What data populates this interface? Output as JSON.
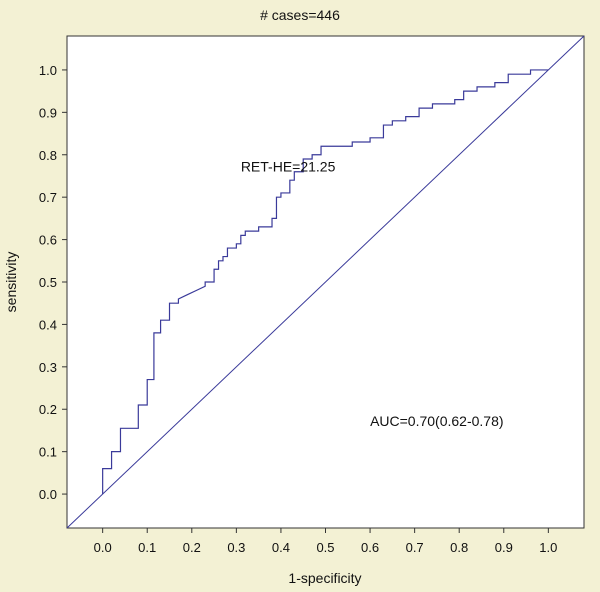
{
  "chart_data": {
    "type": "line",
    "title": "# cases=446",
    "xlabel": "1-specificity",
    "ylabel": "sensitivity",
    "xlim": [
      -0.08,
      1.08
    ],
    "ylim": [
      -0.08,
      1.08
    ],
    "xticks": [
      "0.0",
      "0.1",
      "0.2",
      "0.3",
      "0.4",
      "0.5",
      "0.6",
      "0.7",
      "0.8",
      "0.9",
      "1.0"
    ],
    "yticks": [
      "0.0",
      "0.1",
      "0.2",
      "0.3",
      "0.4",
      "0.5",
      "0.6",
      "0.7",
      "0.8",
      "0.9",
      "1.0"
    ],
    "grid": false,
    "line_color": "#3a3a9a",
    "series": [
      {
        "x": [
          0.0,
          0.0,
          0.02,
          0.02,
          0.04,
          0.04,
          0.08,
          0.08,
          0.1,
          0.1,
          0.115,
          0.115,
          0.13,
          0.13,
          0.15,
          0.15,
          0.17,
          0.17,
          0.19,
          0.21,
          0.23,
          0.23,
          0.25,
          0.25,
          0.26,
          0.26,
          0.27,
          0.27,
          0.28,
          0.28,
          0.3,
          0.3,
          0.31,
          0.31,
          0.32,
          0.32,
          0.35,
          0.35,
          0.38,
          0.38,
          0.39,
          0.39,
          0.4,
          0.4,
          0.42,
          0.42,
          0.43,
          0.43,
          0.45,
          0.45,
          0.47,
          0.47,
          0.49,
          0.49,
          0.56,
          0.56,
          0.6,
          0.6,
          0.63,
          0.63,
          0.65,
          0.65,
          0.68,
          0.68,
          0.71,
          0.71,
          0.74,
          0.74,
          0.79,
          0.79,
          0.81,
          0.81,
          0.84,
          0.84,
          0.88,
          0.88,
          0.91,
          0.91,
          0.96,
          0.96,
          1.0
        ],
        "y": [
          0.0,
          0.06,
          0.06,
          0.1,
          0.1,
          0.155,
          0.155,
          0.21,
          0.21,
          0.27,
          0.27,
          0.38,
          0.38,
          0.41,
          0.41,
          0.45,
          0.45,
          0.46,
          0.47,
          0.48,
          0.49,
          0.5,
          0.5,
          0.53,
          0.53,
          0.55,
          0.55,
          0.56,
          0.56,
          0.58,
          0.58,
          0.59,
          0.59,
          0.61,
          0.61,
          0.62,
          0.62,
          0.63,
          0.63,
          0.65,
          0.65,
          0.7,
          0.7,
          0.71,
          0.71,
          0.74,
          0.74,
          0.76,
          0.76,
          0.79,
          0.79,
          0.8,
          0.8,
          0.82,
          0.82,
          0.83,
          0.83,
          0.84,
          0.84,
          0.87,
          0.87,
          0.88,
          0.88,
          0.89,
          0.89,
          0.91,
          0.91,
          0.92,
          0.92,
          0.93,
          0.93,
          0.95,
          0.95,
          0.96,
          0.96,
          0.97,
          0.97,
          0.99,
          0.99,
          1.0,
          1.0
        ]
      }
    ],
    "reference_line": {
      "x": [
        -0.08,
        1.08
      ],
      "y": [
        -0.08,
        1.08
      ]
    },
    "annotations": [
      {
        "text": "RET-HE=21.25",
        "x": 0.31,
        "y": 0.76
      },
      {
        "text": "AUC=0.70(0.62-0.78)",
        "x": 0.6,
        "y": 0.16
      }
    ]
  }
}
